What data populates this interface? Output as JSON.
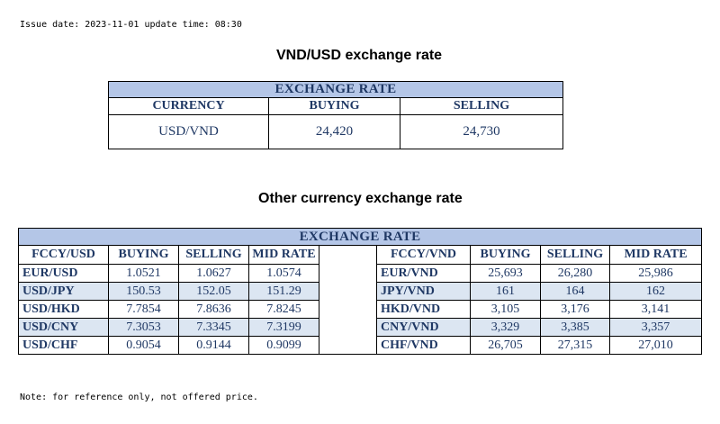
{
  "issue_line": "Issue date: 2023-11-01 update time: 08:30",
  "vnd_usd": {
    "title": "VND/USD exchange rate",
    "band": "EXCHANGE RATE",
    "headers": [
      "CURRENCY",
      "BUYING",
      "SELLING"
    ],
    "row": {
      "currency": "USD/VND",
      "buying": "24,420",
      "selling": "24,730"
    }
  },
  "other": {
    "title": "Other currency exchange rate",
    "band": "EXCHANGE RATE",
    "left_headers": [
      "FCCY/USD",
      "BUYING",
      "SELLING",
      "MID RATE"
    ],
    "right_headers": [
      "FCCY/VND",
      "BUYING",
      "SELLING",
      "MID RATE"
    ],
    "left_rows": [
      {
        "code": "EUR/USD",
        "buying": "1.0521",
        "selling": "1.0627",
        "mid": "1.0574"
      },
      {
        "code": "USD/JPY",
        "buying": "150.53",
        "selling": "152.05",
        "mid": "151.29"
      },
      {
        "code": "USD/HKD",
        "buying": "7.7854",
        "selling": "7.8636",
        "mid": "7.8245"
      },
      {
        "code": "USD/CNY",
        "buying": "7.3053",
        "selling": "7.3345",
        "mid": "7.3199"
      },
      {
        "code": "USD/CHF",
        "buying": "0.9054",
        "selling": "0.9144",
        "mid": "0.9099"
      }
    ],
    "right_rows": [
      {
        "code": "EUR/VND",
        "buying": "25,693",
        "selling": "26,280",
        "mid": "25,986"
      },
      {
        "code": "JPY/VND",
        "buying": "161",
        "selling": "164",
        "mid": "162"
      },
      {
        "code": "HKD/VND",
        "buying": "3,105",
        "selling": "3,176",
        "mid": "3,141"
      },
      {
        "code": "CNY/VND",
        "buying": "3,329",
        "selling": "3,385",
        "mid": "3,357"
      },
      {
        "code": "CHF/VND",
        "buying": "26,705",
        "selling": "27,315",
        "mid": "27,010"
      }
    ]
  },
  "note": "Note: for reference only, not offered price."
}
